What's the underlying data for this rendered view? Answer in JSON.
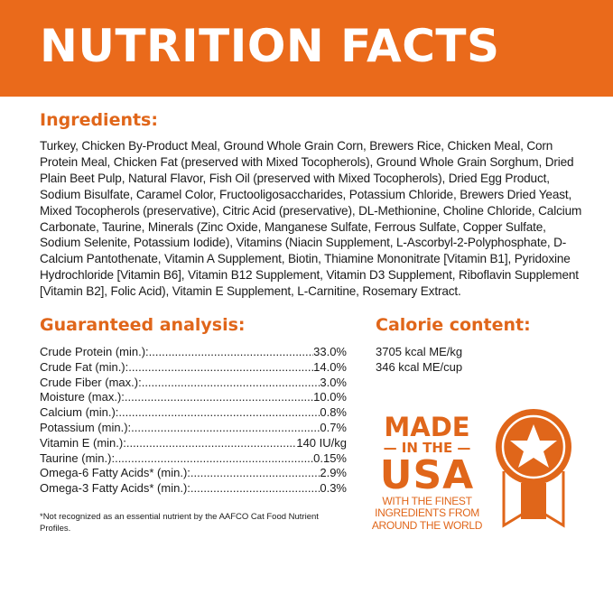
{
  "title": "NUTRITION FACTS",
  "colors": {
    "accent": "#ea6a1b",
    "text": "#1a1a1a",
    "background": "#ffffff"
  },
  "ingredients": {
    "heading": "Ingredients:",
    "text": "Turkey, Chicken By-Product Meal, Ground Whole Grain Corn, Brewers Rice, Chicken Meal, Corn Protein Meal, Chicken Fat (preserved with Mixed Tocopherols), Ground Whole Grain Sorghum, Dried Plain Beet Pulp, Natural Flavor, Fish Oil (preserved with Mixed Tocopherols), Dried Egg Product, Sodium Bisulfate, Caramel Color, Fructooligosaccharides, Potassium Chloride, Brewers Dried Yeast, Mixed Tocopherols (preservative), Citric Acid (preservative), DL-Methionine, Choline Chloride, Calcium Carbonate, Taurine, Minerals (Zinc Oxide, Manganese Sulfate, Ferrous Sulfate, Copper Sulfate, Sodium Selenite, Potassium Iodide), Vitamins (Niacin Supplement, L-Ascorbyl-2-Polyphosphate, D-Calcium Pantothenate, Vitamin A Supplement, Biotin, Thiamine Mononitrate [Vitamin B1], Pyridoxine Hydrochloride [Vitamin B6], Vitamin B12 Supplement, Vitamin D3 Supplement, Riboflavin Supplement [Vitamin B2], Folic Acid), Vitamin E Supplement, L-Carnitine, Rosemary Extract."
  },
  "analysis": {
    "heading": "Guaranteed analysis:",
    "rows": [
      {
        "label": "Crude Protein (min.):",
        "value": "33.0%"
      },
      {
        "label": "Crude Fat (min.):",
        "value": "14.0%"
      },
      {
        "label": "Crude Fiber (max.):",
        "value": "3.0%"
      },
      {
        "label": "Moisture (max.):",
        "value": "10.0%"
      },
      {
        "label": "Calcium (min.):",
        "value": "0.8%"
      },
      {
        "label": "Potassium (min.):",
        "value": "0.7%"
      },
      {
        "label": "Vitamin E (min.):",
        "value": "140 IU/kg"
      },
      {
        "label": "Taurine (min.):",
        "value": "0.15%"
      },
      {
        "label": "Omega-6 Fatty Acids* (min.):",
        "value": "2.9%"
      },
      {
        "label": "Omega-3 Fatty Acids* (min.):",
        "value": "0.3%"
      }
    ]
  },
  "calorie": {
    "heading": "Calorie content:",
    "lines": [
      "3705 kcal ME/kg",
      "346 kcal ME/cup"
    ]
  },
  "footnote": "*Not recognized as an essential nutrient by the AAFCO Cat Food Nutrient Profiles.",
  "made_in_usa": {
    "made": "MADE",
    "in_the": "IN THE",
    "usa": "USA",
    "tagline": [
      "WITH THE FINEST",
      "INGREDIENTS FROM",
      "AROUND THE WORLD"
    ],
    "icon": "star-ribbon-badge-icon"
  }
}
